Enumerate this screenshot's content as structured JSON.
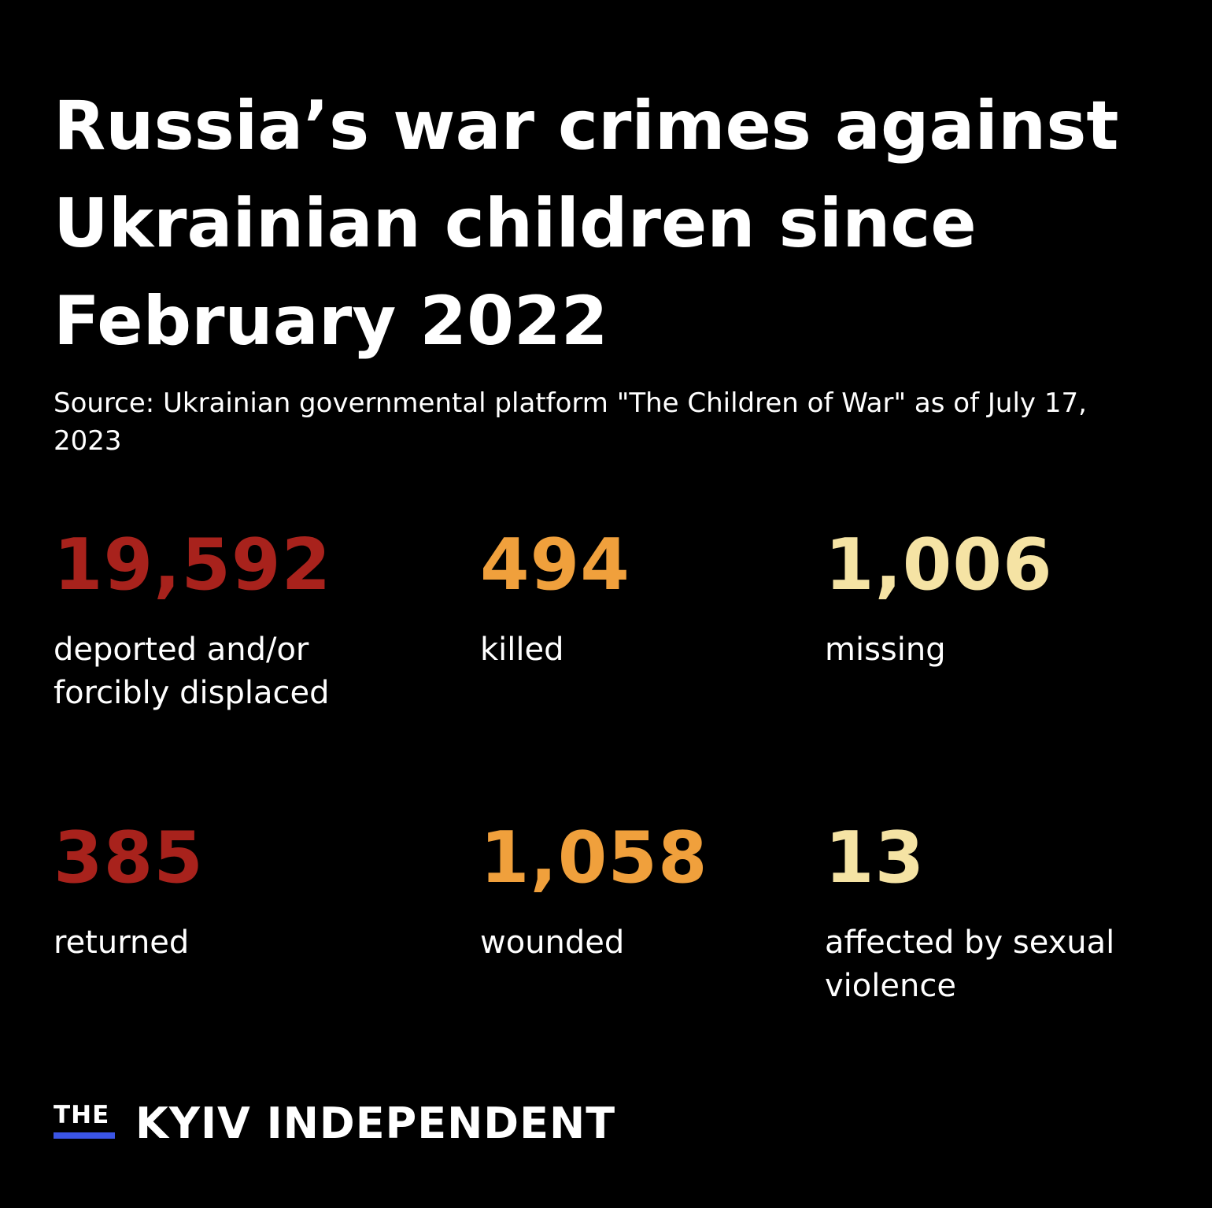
{
  "title": "Russia’s war crimes against Ukrainian children since February 2022",
  "source": "Source:  Ukrainian governmental platform \"The Children of War\" as of July 17, 2023",
  "colors": {
    "background": "#000000",
    "text": "#ffffff",
    "red": "#a8221c",
    "orange": "#f0a03c",
    "cream": "#f5e3a4",
    "logo_bar": "#3b55e6"
  },
  "stats": [
    {
      "value": "19,592",
      "label": "deported and/or forcibly displaced"
    },
    {
      "value": "494",
      "label": "killed"
    },
    {
      "value": "1,006",
      "label": "missing"
    },
    {
      "value": "385",
      "label": "returned"
    },
    {
      "value": "1,058",
      "label": "wounded"
    },
    {
      "value": "13",
      "label": "affected by sexual violence"
    }
  ],
  "logo": {
    "the": "THE",
    "name": "KYIV INDEPENDENT"
  }
}
